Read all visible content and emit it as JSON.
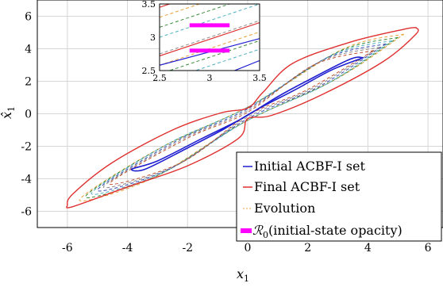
{
  "chart_data": [
    {
      "type": "line",
      "title": "",
      "xlabel": "x",
      "xlabel_sub": "1",
      "ylabel": "x̂",
      "ylabel_sub": "1",
      "xlim": [
        -7,
        6.5
      ],
      "ylim": [
        -7,
        7
      ],
      "xticks": [
        -6,
        -4,
        -2,
        0,
        2,
        4,
        6
      ],
      "yticks": [
        -6,
        -4,
        -2,
        0,
        2,
        4,
        6
      ],
      "xtick_labels": [
        "-6",
        "-4",
        "-2",
        "0",
        "2",
        "4",
        "6"
      ],
      "ytick_labels": [
        "-6",
        "-4",
        "-2",
        "0",
        "2",
        "4",
        "6"
      ],
      "grid": true,
      "legend_position": "bottom-right",
      "colors": {
        "initial": "#1f1fd0",
        "final": "#e03030",
        "evolution": [
          "#e8a038",
          "#3a8a3a",
          "#50b0c0",
          "#3a4ab0",
          "#8a8a8a",
          "#c05030"
        ],
        "opacity": "#ff00ff"
      },
      "series": [
        {
          "name": "Initial ACBF-I set",
          "style": "solid",
          "points": [
            [
              3.85,
              3.45
            ],
            [
              3.4,
              3.35
            ],
            [
              2.0,
              2.05
            ],
            [
              1.0,
              1.05
            ],
            [
              -0.2,
              -0.3
            ],
            [
              -1.5,
              -1.5
            ],
            [
              -3.0,
              -2.9
            ],
            [
              -3.85,
              -3.4
            ],
            [
              -3.4,
              -3.4
            ],
            [
              -2.0,
              -2.1
            ],
            [
              -0.8,
              -0.95
            ],
            [
              0.3,
              0.25
            ],
            [
              1.6,
              1.5
            ],
            [
              2.8,
              2.7
            ],
            [
              3.85,
              3.45
            ]
          ]
        },
        {
          "name": "Final ACBF-I set",
          "style": "solid",
          "points": [
            [
              5.6,
              5.3
            ],
            [
              5.2,
              5.2
            ],
            [
              3.4,
              4.4
            ],
            [
              1.5,
              3.1
            ],
            [
              0.5,
              1.3
            ],
            [
              0.0,
              0.35
            ],
            [
              -0.9,
              0.05
            ],
            [
              -2.5,
              -1.0
            ],
            [
              -4.5,
              -3.0
            ],
            [
              -5.8,
              -4.9
            ],
            [
              -6.0,
              -5.6
            ],
            [
              -5.8,
              -5.7
            ],
            [
              -4.0,
              -4.5
            ],
            [
              -2.0,
              -3.2
            ],
            [
              -0.3,
              -1.5
            ],
            [
              0.0,
              -0.3
            ],
            [
              0.8,
              -0.1
            ],
            [
              2.5,
              1.2
            ],
            [
              4.5,
              3.2
            ],
            [
              5.6,
              4.9
            ],
            [
              5.6,
              5.3
            ]
          ]
        },
        {
          "name": "Evolution",
          "style": "dashed",
          "curves": [
            [
              [
                5.2,
                4.9
              ],
              [
                3.2,
                4.0
              ],
              [
                0.2,
                0.6
              ],
              [
                -3.0,
                -2.2
              ],
              [
                -5.6,
                -5.3
              ],
              [
                -3.2,
                -4.0
              ],
              [
                -0.2,
                -0.6
              ],
              [
                3.0,
                2.2
              ],
              [
                5.2,
                4.9
              ]
            ],
            [
              [
                5.0,
                4.7
              ],
              [
                3.0,
                3.8
              ],
              [
                0.1,
                0.5
              ],
              [
                -2.8,
                -2.0
              ],
              [
                -5.4,
                -5.1
              ],
              [
                -3.0,
                -3.8
              ],
              [
                -0.1,
                -0.5
              ],
              [
                2.8,
                2.0
              ],
              [
                5.0,
                4.7
              ]
            ],
            [
              [
                4.8,
                4.5
              ],
              [
                2.8,
                3.6
              ],
              [
                0.0,
                0.4
              ],
              [
                -2.6,
                -1.8
              ],
              [
                -5.2,
                -4.9
              ],
              [
                -2.8,
                -3.6
              ],
              [
                0.0,
                -0.4
              ],
              [
                2.6,
                1.8
              ],
              [
                4.8,
                4.5
              ]
            ],
            [
              [
                4.6,
                4.3
              ],
              [
                2.6,
                3.4
              ],
              [
                0.0,
                0.3
              ],
              [
                -2.4,
                -1.7
              ],
              [
                -5.0,
                -4.7
              ],
              [
                -2.6,
                -3.4
              ],
              [
                0.0,
                -0.3
              ],
              [
                2.4,
                1.7
              ],
              [
                4.6,
                4.3
              ]
            ],
            [
              [
                4.4,
                4.1
              ],
              [
                2.4,
                3.2
              ],
              [
                0.0,
                0.2
              ],
              [
                -2.2,
                -1.6
              ],
              [
                -4.8,
                -4.5
              ],
              [
                -2.4,
                -3.2
              ],
              [
                0.0,
                -0.2
              ],
              [
                2.2,
                1.6
              ],
              [
                4.4,
                4.1
              ]
            ],
            [
              [
                4.2,
                3.9
              ],
              [
                2.2,
                3.0
              ],
              [
                0.0,
                0.1
              ],
              [
                -2.0,
                -1.5
              ],
              [
                -4.6,
                -4.3
              ],
              [
                -2.2,
                -3.0
              ],
              [
                0.0,
                -0.1
              ],
              [
                2.0,
                1.5
              ],
              [
                4.2,
                3.9
              ]
            ]
          ]
        },
        {
          "name": "(initial-state opacity)",
          "legend_symbol": "ℛ",
          "legend_symbol_sub": "0",
          "style": "filled-bar",
          "bars": [
            {
              "x": [
                2.8,
                3.2
              ],
              "y": 3.18
            },
            {
              "x": [
                2.8,
                3.2
              ],
              "y": 2.8
            }
          ]
        }
      ]
    },
    {
      "type": "line",
      "role": "inset",
      "xlim": [
        2.5,
        3.5
      ],
      "ylim": [
        2.5,
        3.5
      ],
      "xticks": [
        2.5,
        3,
        3.5
      ],
      "yticks": [
        2.5,
        3,
        3.5
      ],
      "xtick_labels": [
        "2.5",
        "3",
        "3.5"
      ],
      "ytick_labels": [
        "2.5",
        "3",
        "3.5"
      ],
      "lines": [
        {
          "color": "#e03030",
          "style": "solid",
          "x": [
            2.5,
            3.5
          ],
          "y": [
            3.45,
            3.95
          ]
        },
        {
          "color": "#e8a038",
          "style": "dashed",
          "x": [
            2.5,
            3.5
          ],
          "y": [
            3.3,
            3.8
          ]
        },
        {
          "color": "#3a8a3a",
          "style": "dashed",
          "x": [
            2.5,
            3.5
          ],
          "y": [
            3.15,
            3.65
          ]
        },
        {
          "color": "#50b0c0",
          "style": "dashed",
          "x": [
            2.5,
            3.5
          ],
          "y": [
            3.0,
            3.5
          ]
        },
        {
          "color": "#8a8a8a",
          "style": "dashed",
          "x": [
            2.5,
            3.5
          ],
          "y": [
            2.75,
            3.25
          ]
        },
        {
          "color": "#e03030",
          "style": "solid",
          "x": [
            2.5,
            3.5
          ],
          "y": [
            2.72,
            3.22
          ]
        },
        {
          "color": "#e8a038",
          "style": "dashed",
          "x": [
            2.5,
            3.5
          ],
          "y": [
            2.58,
            3.08
          ]
        },
        {
          "color": "#3a8a3a",
          "style": "dashed",
          "x": [
            2.5,
            3.5
          ],
          "y": [
            2.45,
            2.95
          ]
        },
        {
          "color": "#50b0c0",
          "style": "dashed",
          "x": [
            2.5,
            3.5
          ],
          "y": [
            2.32,
            2.82
          ]
        },
        {
          "color": "#1f1fd0",
          "style": "solid",
          "x": [
            2.5,
            3.5
          ],
          "y": [
            2.58,
            2.98
          ]
        },
        {
          "color": "#1f1fd0",
          "style": "solid",
          "x": [
            2.5,
            3.5
          ],
          "y": [
            2.05,
            2.65
          ]
        }
      ]
    }
  ]
}
